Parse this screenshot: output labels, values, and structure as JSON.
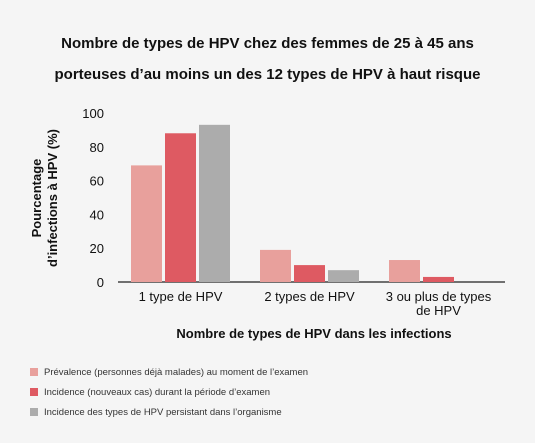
{
  "title_line1": "Nombre de types de HPV chez des femmes de 25 à 45 ans",
  "title_line2": "porteuses d’au moins un des 12 types de HPV à haut risque",
  "chart_data": {
    "type": "bar",
    "categories": [
      "1 type de HPV",
      "2 types de HPV",
      "3 ou plus de types de HPV"
    ],
    "category_lines": [
      [
        "1 type de HPV"
      ],
      [
        "2 types de HPV"
      ],
      [
        "3 ou plus de types",
        "de HPV"
      ]
    ],
    "series": [
      {
        "name": "Prévalence (personnes déjà malades) au moment de l’examen",
        "values": [
          69,
          19,
          13
        ],
        "color": "#e8a09c"
      },
      {
        "name": "Incidence (nouveaux cas) durant la période d’examen",
        "values": [
          88,
          10,
          3
        ],
        "color": "#de5a62"
      },
      {
        "name": "Incidence des types de HPV persistant dans l’organisme",
        "values": [
          93,
          7,
          0
        ],
        "color": "#acacac"
      }
    ],
    "ylabel_line1": "Pourcentage",
    "ylabel_line2": "d’infections à HPV (%)",
    "xlabel": "Nombre de types de HPV dans les infections",
    "yticks": [
      0,
      20,
      40,
      60,
      80,
      100
    ],
    "ylim": [
      0,
      100
    ],
    "grid": false,
    "legend_position": "bottom-left"
  }
}
